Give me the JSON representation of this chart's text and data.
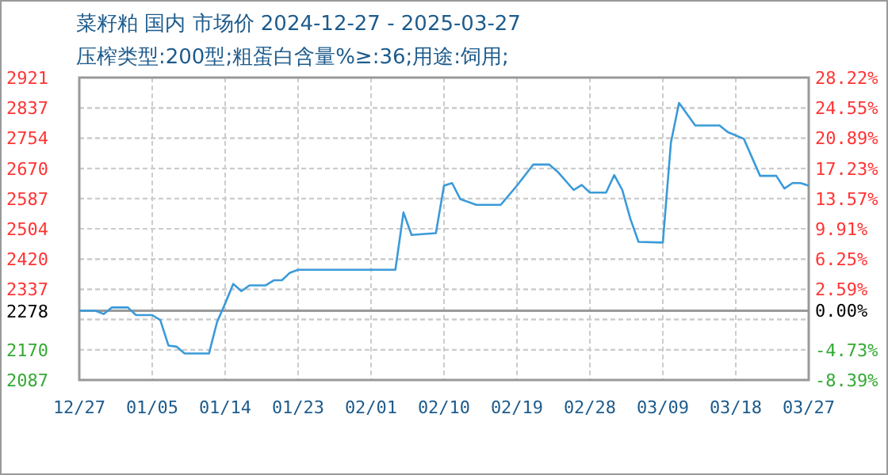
{
  "chart_data": {
    "type": "line",
    "title": "菜籽粕 国内 市场价 2024-12-27 - 2025-03-27",
    "subtitle": "压榨类型:200型;粗蛋白含量%≥:36;用途:饲用;",
    "x": [
      "2024-12-27",
      "2024-12-29",
      "2024-12-30",
      "2024-12-31",
      "2025-01-02",
      "2025-01-03",
      "2025-01-05",
      "2025-01-06",
      "2025-01-07",
      "2025-01-08",
      "2025-01-09",
      "2025-01-12",
      "2025-01-13",
      "2025-01-14",
      "2025-01-15",
      "2025-01-16",
      "2025-01-17",
      "2025-01-19",
      "2025-01-20",
      "2025-01-21",
      "2025-01-22",
      "2025-01-23",
      "2025-02-04",
      "2025-02-05",
      "2025-02-06",
      "2025-02-09",
      "2025-02-10",
      "2025-02-11",
      "2025-02-12",
      "2025-02-14",
      "2025-02-17",
      "2025-02-19",
      "2025-02-21",
      "2025-02-23",
      "2025-02-24",
      "2025-02-26",
      "2025-02-27",
      "2025-02-28",
      "2025-03-02",
      "2025-03-03",
      "2025-03-04",
      "2025-03-05",
      "2025-03-06",
      "2025-03-09",
      "2025-03-10",
      "2025-03-11",
      "2025-03-13",
      "2025-03-16",
      "2025-03-17",
      "2025-03-19",
      "2025-03-21",
      "2025-03-23",
      "2025-03-24",
      "2025-03-25",
      "2025-03-26",
      "2025-03-27"
    ],
    "series": [
      {
        "color": "#3a9ad9",
        "values": [
          2278,
          2278,
          2269,
          2287,
          2287,
          2266,
          2266,
          2252,
          2182,
          2179,
          2160,
          2160,
          2247,
          2298,
          2352,
          2332,
          2348,
          2348,
          2362,
          2362,
          2383,
          2391,
          2391,
          2549,
          2487,
          2492,
          2623,
          2630,
          2586,
          2570,
          2570,
          2623,
          2681,
          2681,
          2662,
          2611,
          2625,
          2604,
          2604,
          2652,
          2611,
          2531,
          2468,
          2466,
          2742,
          2851,
          2789,
          2789,
          2771,
          2752,
          2650,
          2650,
          2615,
          2630,
          2630,
          2623
        ]
      }
    ],
    "xlim": [
      "2024-12-27",
      "2025-03-27"
    ],
    "xticks": [
      {
        "value": "2024-12-27",
        "label": "12/27"
      },
      {
        "value": "2025-01-05",
        "label": "01/05"
      },
      {
        "value": "2025-01-14",
        "label": "01/14"
      },
      {
        "value": "2025-01-23",
        "label": "01/23"
      },
      {
        "value": "2025-02-01",
        "label": "02/01"
      },
      {
        "value": "2025-02-10",
        "label": "02/10"
      },
      {
        "value": "2025-02-19",
        "label": "02/19"
      },
      {
        "value": "2025-02-28",
        "label": "02/28"
      },
      {
        "value": "2025-03-09",
        "label": "03/09"
      },
      {
        "value": "2025-03-18",
        "label": "03/18"
      },
      {
        "value": "2025-03-27",
        "label": "03/27"
      }
    ],
    "ylim": [
      2087,
      2921
    ],
    "yticks": [
      2087,
      2170,
      {
        "value": 2254,
        "label": null
      },
      2278,
      2337,
      2420,
      2504,
      2587,
      2670,
      2754,
      2837,
      2921
    ],
    "y2lim": [
      -8.39,
      28.22
    ],
    "y2ticks": [
      {
        "value": -8.39,
        "label": "-8.39%"
      },
      {
        "value": -4.73,
        "label": "-4.73%"
      },
      {
        "value": -1.07,
        "label": null
      },
      {
        "value": 0,
        "label": "0.00%"
      },
      {
        "value": 2.59,
        "label": "2.59%"
      },
      {
        "value": 6.25,
        "label": "6.25%"
      },
      {
        "value": 9.91,
        "label": "9.91%"
      },
      {
        "value": 13.57,
        "label": "13.57%"
      },
      {
        "value": 17.23,
        "label": "17.23%"
      },
      {
        "value": 20.89,
        "label": "20.89%"
      },
      {
        "value": 24.55,
        "label": "24.55%"
      },
      {
        "value": 28.22,
        "label": "28.22%"
      }
    ],
    "ref_lines": [
      {
        "axis": "y",
        "value": 2278,
        "color": "#999999"
      }
    ],
    "grid": true
  }
}
